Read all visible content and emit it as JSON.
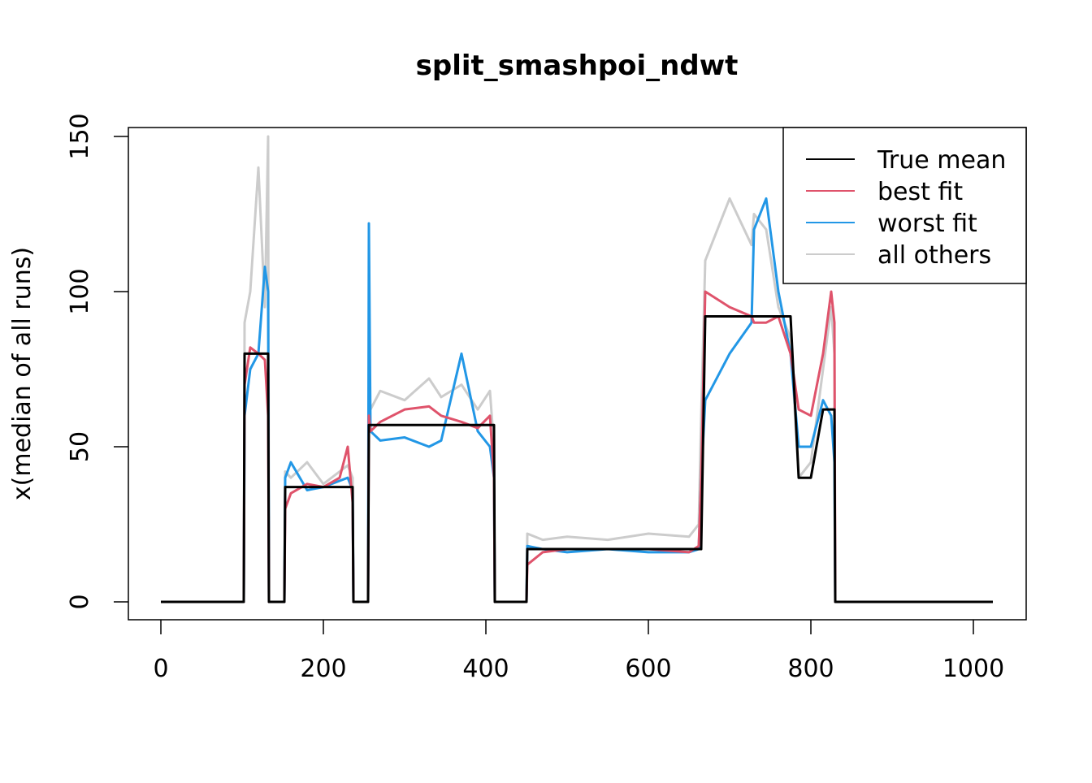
{
  "chart_data": {
    "type": "line",
    "title": "split_smashpoi_ndwt",
    "y_label": "x(median of all runs)",
    "x": [
      0,
      102,
      103,
      110,
      120,
      128,
      132,
      133,
      152,
      153,
      160,
      180,
      200,
      220,
      230,
      236,
      237,
      255,
      256,
      258,
      270,
      300,
      330,
      345,
      370,
      390,
      405,
      410,
      411,
      450,
      451,
      470,
      500,
      550,
      600,
      650,
      662,
      665,
      670,
      700,
      727,
      730,
      745,
      760,
      775,
      785,
      800,
      815,
      825,
      829,
      830,
      1024
    ],
    "series": [
      {
        "name": "True mean",
        "color": "#000000",
        "values": [
          0,
          0,
          80,
          80,
          80,
          80,
          80,
          0,
          0,
          37,
          37,
          37,
          37,
          37,
          37,
          37,
          0,
          0,
          57,
          57,
          57,
          57,
          57,
          57,
          57,
          57,
          57,
          57,
          0,
          0,
          17,
          17,
          17,
          17,
          17,
          17,
          17,
          17,
          92,
          92,
          92,
          92,
          92,
          92,
          92,
          40,
          40,
          62,
          62,
          62,
          0,
          0
        ]
      },
      {
        "name": "best fit",
        "color": "#DF536B",
        "values": [
          0,
          0,
          70,
          82,
          80,
          78,
          60,
          0,
          0,
          30,
          35,
          38,
          37,
          40,
          50,
          32,
          0,
          0,
          60,
          55,
          58,
          62,
          63,
          60,
          58,
          56,
          60,
          40,
          0,
          0,
          12,
          16,
          17,
          17,
          17,
          16,
          18,
          40,
          100,
          95,
          92,
          90,
          90,
          92,
          80,
          62,
          60,
          80,
          100,
          90,
          0,
          0
        ]
      },
      {
        "name": "worst fit",
        "color": "#2297E6",
        "values": [
          0,
          0,
          60,
          75,
          80,
          108,
          100,
          0,
          0,
          40,
          45,
          36,
          37,
          39,
          40,
          36,
          0,
          0,
          122,
          55,
          52,
          53,
          50,
          52,
          80,
          55,
          50,
          40,
          0,
          0,
          18,
          17,
          16,
          17,
          16,
          16,
          17,
          40,
          65,
          80,
          90,
          120,
          130,
          100,
          80,
          50,
          50,
          65,
          60,
          45,
          0,
          0
        ]
      },
      {
        "name": "all others",
        "color": "#CCCCCC",
        "values": [
          0,
          0,
          90,
          100,
          140,
          95,
          150,
          0,
          0,
          42,
          40,
          45,
          38,
          42,
          44,
          40,
          0,
          0,
          70,
          62,
          68,
          65,
          72,
          66,
          70,
          62,
          68,
          50,
          0,
          0,
          22,
          20,
          21,
          20,
          22,
          21,
          25,
          60,
          110,
          130,
          115,
          125,
          120,
          95,
          85,
          40,
          45,
          75,
          95,
          80,
          0,
          0
        ]
      }
    ],
    "xlim": [
      -40,
      1065
    ],
    "ylim": [
      -5.76,
      152.88
    ],
    "xticks": [
      0,
      200,
      400,
      600,
      800,
      1000
    ],
    "yticks": [
      0,
      50,
      100,
      150
    ],
    "legend": "top-right"
  }
}
